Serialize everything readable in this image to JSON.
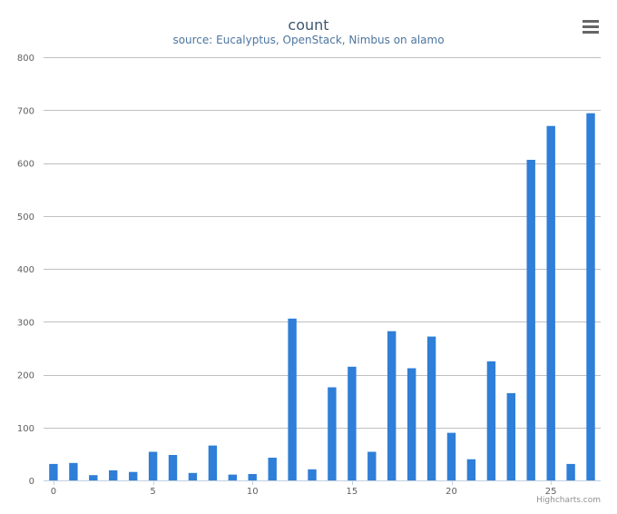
{
  "chart_data": {
    "type": "bar",
    "title": "count",
    "subtitle": "source: Eucalyptus, OpenStack, Nimbus on alamo",
    "credits": "Highcharts.com",
    "x": [
      0,
      1,
      2,
      3,
      4,
      5,
      6,
      7,
      8,
      9,
      10,
      11,
      12,
      13,
      14,
      15,
      16,
      17,
      18,
      19,
      20,
      21,
      22,
      23,
      24,
      25,
      26,
      27
    ],
    "values": [
      31,
      33,
      10,
      19,
      16,
      54,
      48,
      14,
      66,
      11,
      12,
      43,
      306,
      21,
      176,
      215,
      54,
      282,
      212,
      272,
      90,
      40,
      225,
      165,
      606,
      670,
      31,
      694
    ],
    "bar_color": "#2f7ed8",
    "xlim": [
      -0.5,
      27.5
    ],
    "ylim": [
      0,
      800
    ],
    "x_ticks": [
      "0",
      "5",
      "10",
      "15",
      "20",
      "25"
    ],
    "x_tick_values": [
      0,
      5,
      10,
      15,
      20,
      25
    ],
    "y_ticks": [
      "0",
      "100",
      "200",
      "300",
      "400",
      "500",
      "600",
      "700",
      "800"
    ],
    "y_tick_values": [
      0,
      100,
      200,
      300,
      400,
      500,
      600,
      700,
      800
    ],
    "grid": true,
    "legend": "none"
  },
  "toolbar": {
    "menu_icon": "hamburger-menu-icon"
  }
}
